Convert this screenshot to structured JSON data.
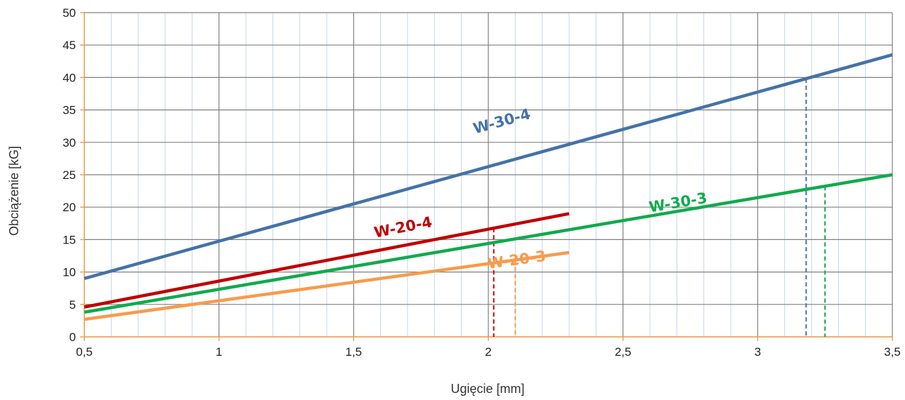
{
  "chart_data": {
    "type": "line",
    "title": "",
    "xlabel": "Ugięcie [mm]",
    "ylabel": "Obciążenie [kG]",
    "xlim": [
      0.5,
      3.5
    ],
    "ylim": [
      0,
      50
    ],
    "x_ticks": [
      0.5,
      1,
      1.5,
      2,
      2.5,
      3,
      3.5
    ],
    "x_tick_labels": [
      "0,5",
      "1",
      "1,5",
      "2",
      "2,5",
      "3",
      "3,5"
    ],
    "y_ticks": [
      0,
      5,
      10,
      15,
      20,
      25,
      30,
      35,
      40,
      45,
      50
    ],
    "y_tick_labels": [
      "0",
      "5",
      "10",
      "15",
      "20",
      "25",
      "30",
      "35",
      "40",
      "45",
      "50"
    ],
    "grid": {
      "major": true,
      "minor_x_step": 0.1
    },
    "colors": {
      "major_grid": "#808080",
      "minor_grid": "#c5d5ea",
      "axis": "#f0a050"
    },
    "series": [
      {
        "name": "W-30-4",
        "color": "#4472a8",
        "x": [
          0.5,
          3.5
        ],
        "y": [
          9.0,
          43.5
        ],
        "marker_x": 3.18
      },
      {
        "name": "W-30-3",
        "color": "#11aa4c",
        "x": [
          0.5,
          3.5
        ],
        "y": [
          3.8,
          25.0
        ],
        "marker_x": 3.25
      },
      {
        "name": "W-20-4",
        "color": "#c00000",
        "x": [
          0.5,
          2.3
        ],
        "y": [
          4.6,
          19.0
        ],
        "marker_x": 2.02
      },
      {
        "name": "W-20-3",
        "color": "#f79b4b",
        "x": [
          0.5,
          2.3
        ],
        "y": [
          2.7,
          13.0
        ],
        "marker_x": 2.1
      }
    ]
  }
}
